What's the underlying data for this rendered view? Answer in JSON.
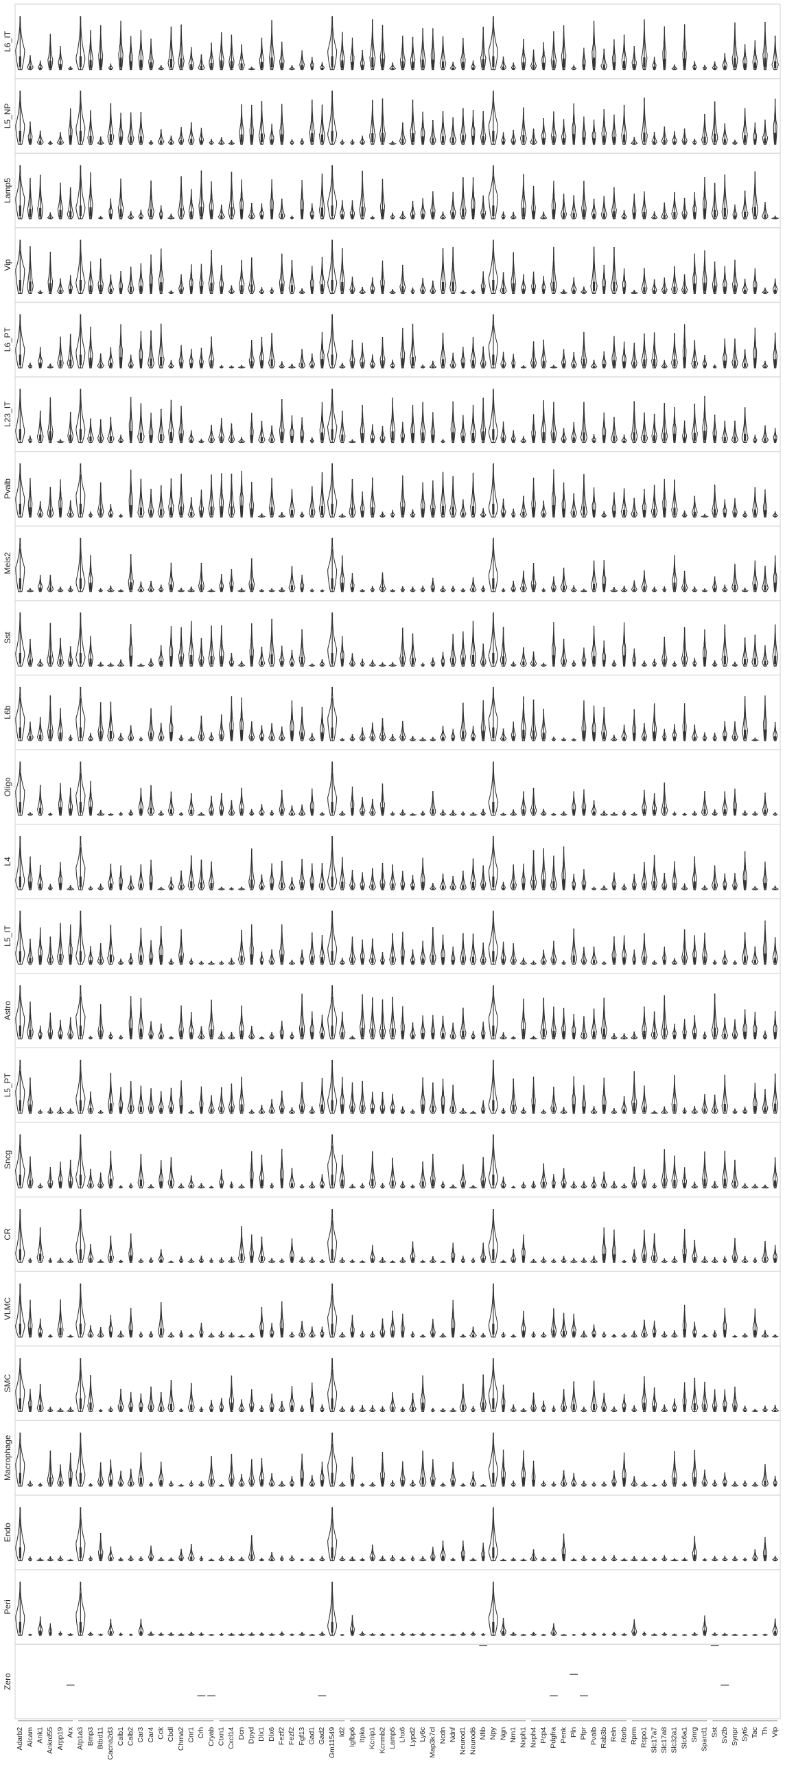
{
  "chart_data": {
    "type": "violin",
    "title": "",
    "xlabel": "",
    "ylabel": "",
    "grid": false,
    "genes": [
      "Adarb2",
      "Alcam",
      "Ank1",
      "Ankrd55",
      "Arpp19",
      "Arx",
      "Atp1a3",
      "Bmp3",
      "Btbd11",
      "Cacna2d3",
      "Calb1",
      "Calb2",
      "Car3",
      "Car4",
      "Cck",
      "Cbdl",
      "Chrna2",
      "Cnr1",
      "Crh",
      "Cryab",
      "Ctxn1",
      "Cxcl14",
      "Dcn",
      "Dpyd",
      "Dlx1",
      "Dlx6",
      "Fezf2",
      "Fezf2",
      "Fgf13",
      "Gad1",
      "Gad2",
      "Gm11549",
      "Id2",
      "Igfbp6",
      "Itpka",
      "Kcnip1",
      "Kcnmb2",
      "Lamp5",
      "Lhx6",
      "Lypd2",
      "Ly6c",
      "Map3k7cl",
      "Ncdn",
      "Ndnf",
      "Neurod1",
      "Neurod6",
      "Nfib",
      "Npy",
      "Ngn",
      "Nrn1",
      "Nxph1",
      "Nxph4",
      "Pcp4",
      "Pdgfra",
      "Penk",
      "Pln",
      "Plpr",
      "Pvalb",
      "Rab3b",
      "Reln",
      "Rorb",
      "Rprm",
      "Rspo1",
      "Slc17a7",
      "Slc17a8",
      "Slc32a1",
      "Slc6a1",
      "Snrg",
      "Sparcl1",
      "Sst",
      "Sv2b",
      "Synpr",
      "Syt6",
      "Tac",
      "Th",
      "Vip"
    ],
    "cell_types": [
      "L6_IT",
      "L5_NP",
      "Lamp5",
      "Vip",
      "L6_PT",
      "L23_IT",
      "Pvalb",
      "Meis2",
      "Sst",
      "L6b",
      "Oligo",
      "L4",
      "L5_IT",
      "Astro",
      "L5_PT",
      "Sncg",
      "CR",
      "VLMC",
      "SMC",
      "Macrophage",
      "Endo",
      "Peri",
      "Zero"
    ],
    "profiles": {
      "L6_IT": {
        "height": 0.8,
        "spread": 0.45,
        "sparsity": 0.2
      },
      "L5_NP": {
        "height": 0.75,
        "spread": 0.4,
        "sparsity": 0.25
      },
      "Lamp5": {
        "height": 0.78,
        "spread": 0.42,
        "sparsity": 0.2
      },
      "Vip": {
        "height": 0.75,
        "spread": 0.4,
        "sparsity": 0.25
      },
      "L6_PT": {
        "height": 0.72,
        "spread": 0.4,
        "sparsity": 0.3
      },
      "L23_IT": {
        "height": 0.75,
        "spread": 0.4,
        "sparsity": 0.25
      },
      "Pvalb": {
        "height": 0.78,
        "spread": 0.42,
        "sparsity": 0.22
      },
      "Meis2": {
        "height": 0.6,
        "spread": 0.55,
        "sparsity": 0.55
      },
      "Sst": {
        "height": 0.78,
        "spread": 0.42,
        "sparsity": 0.2
      },
      "L6b": {
        "height": 0.72,
        "spread": 0.45,
        "sparsity": 0.28
      },
      "Oligo": {
        "height": 0.55,
        "spread": 0.55,
        "sparsity": 0.55
      },
      "L4": {
        "height": 0.7,
        "spread": 0.45,
        "sparsity": 0.3
      },
      "L5_IT": {
        "height": 0.7,
        "spread": 0.45,
        "sparsity": 0.28
      },
      "Astro": {
        "height": 0.72,
        "spread": 0.42,
        "sparsity": 0.28
      },
      "L5_PT": {
        "height": 0.72,
        "spread": 0.42,
        "sparsity": 0.3
      },
      "Sncg": {
        "height": 0.62,
        "spread": 0.5,
        "sparsity": 0.45
      },
      "CR": {
        "height": 0.58,
        "spread": 0.55,
        "sparsity": 0.55
      },
      "VLMC": {
        "height": 0.6,
        "spread": 0.5,
        "sparsity": 0.45
      },
      "SMC": {
        "height": 0.62,
        "spread": 0.5,
        "sparsity": 0.4
      },
      "Macrophage": {
        "height": 0.58,
        "spread": 0.55,
        "sparsity": 0.5
      },
      "Endo": {
        "height": 0.5,
        "spread": 0.6,
        "sparsity": 0.6
      },
      "Peri": {
        "height": 0.32,
        "spread": 0.7,
        "sparsity": 0.8
      }
    },
    "zero_marks": {
      "Arx": 0.55,
      "Crh": 0.7,
      "Cryab": 0.7,
      "Gad2": 0.7,
      "Nfib": 0.0,
      "Pdgfra": 0.7,
      "Pln": 0.4,
      "Plpr": 0.7,
      "Sst": 0.0,
      "Sv2b": 0.55
    },
    "colors": {
      "frame": "#d9d9d9",
      "violin_fill": "#ffffff",
      "violin_stroke": "#333333",
      "text": "#262626"
    }
  }
}
